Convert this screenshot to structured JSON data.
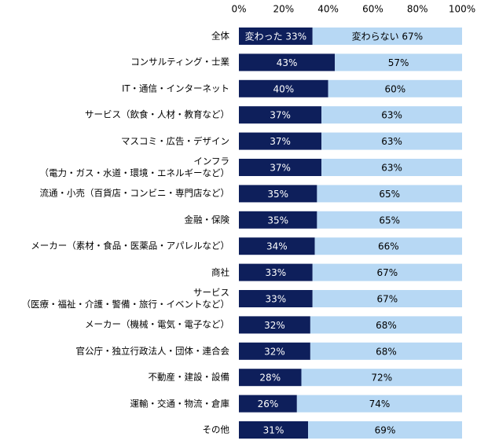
{
  "chart_data": {
    "type": "stacked-bar-horizontal",
    "categories": [
      "全体",
      "コンサルティング・士業",
      "IT・通信・インターネット",
      "サービス（飲食・人材・教育など）",
      "マスコミ・広告・デザイン",
      "インフラ\n（電力・ガス・水道・環境・エネルギーなど）",
      "流通・小売（百貨店・コンビニ・専門店など）",
      "金融・保険",
      "メーカー（素材・食品・医薬品・アパレルなど）",
      "商社",
      "サービス\n（医療・福祉・介護・警備・旅行・イベントなど）",
      "メーカー（機械・電気・電子など）",
      "官公庁・独立行政法人・団体・連合会",
      "不動産・建設・設備",
      "運輸・交通・物流・倉庫",
      "その他"
    ],
    "series": [
      {
        "color": "#0e1f5b",
        "values": [
          33,
          43,
          40,
          37,
          37,
          37,
          35,
          35,
          34,
          33,
          33,
          32,
          32,
          28,
          26,
          31
        ],
        "value_labels": [
          "変わった 33%",
          "43%",
          "40%",
          "37%",
          "37%",
          "37%",
          "35%",
          "35%",
          "34%",
          "33%",
          "33%",
          "32%",
          "32%",
          "28%",
          "26%",
          "31%"
        ]
      },
      {
        "color": "#b7d8f4",
        "values": [
          67,
          57,
          60,
          63,
          63,
          63,
          65,
          65,
          66,
          67,
          67,
          68,
          68,
          72,
          74,
          69
        ],
        "value_labels": [
          "変わらない 67%",
          "57%",
          "60%",
          "63%",
          "63%",
          "63%",
          "65%",
          "65%",
          "66%",
          "67%",
          "67%",
          "68%",
          "68%",
          "72%",
          "74%",
          "69%"
        ]
      }
    ],
    "xlim": [
      0,
      100
    ],
    "xticks": [
      {
        "value": 0,
        "label": "0%"
      },
      {
        "value": 20,
        "label": "20%"
      },
      {
        "value": 40,
        "label": "40%"
      },
      {
        "value": 60,
        "label": "60%"
      },
      {
        "value": 80,
        "label": "80%"
      },
      {
        "value": 100,
        "label": "100%"
      }
    ]
  }
}
